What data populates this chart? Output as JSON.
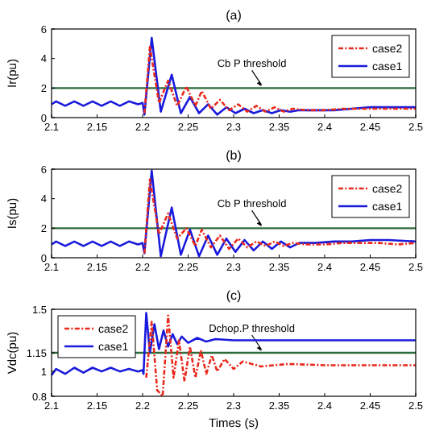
{
  "chart_data": [
    {
      "type": "line",
      "title": "(a)",
      "ylabel": "Ir(pu)",
      "xlim": [
        2.1,
        2.5
      ],
      "xticks": [
        2.1,
        2.15,
        2.2,
        2.25,
        2.3,
        2.35,
        2.4,
        2.45,
        2.5
      ],
      "ylim": [
        0,
        6
      ],
      "yticks": [
        0,
        2,
        4,
        6
      ],
      "legend": "top right",
      "marker": "none",
      "ref_lines": [
        {
          "axis": "y",
          "value": 2,
          "label": "Cb P threshold",
          "color": "#2e6b3a"
        }
      ],
      "series": [
        {
          "name": "case2",
          "color": "#e8291c",
          "line_style": "dashed",
          "x": [
            2.202,
            2.208,
            2.218,
            2.228,
            2.238,
            2.248,
            2.258,
            2.265,
            2.275,
            2.285,
            2.295,
            2.305,
            2.315,
            2.325,
            2.335,
            2.345,
            2.355,
            2.365,
            2.38,
            2.4,
            2.42,
            2.44,
            2.46,
            2.48,
            2.5
          ],
          "values": [
            0.3,
            4.8,
            1.0,
            2.5,
            0.8,
            2.1,
            0.8,
            1.8,
            0.6,
            1.2,
            0.5,
            0.9,
            0.4,
            0.8,
            0.4,
            0.7,
            0.4,
            0.6,
            0.5,
            0.5,
            0.6,
            0.6,
            0.6,
            0.6,
            0.6
          ]
        },
        {
          "name": "case1",
          "color": "#1a1adc",
          "line_style": "solid",
          "x": [
            2.1,
            2.105,
            2.115,
            2.125,
            2.135,
            2.145,
            2.155,
            2.165,
            2.175,
            2.185,
            2.195,
            2.2,
            2.202,
            2.21,
            2.22,
            2.232,
            2.242,
            2.252,
            2.262,
            2.272,
            2.282,
            2.292,
            2.302,
            2.312,
            2.322,
            2.332,
            2.342,
            2.352,
            2.362,
            2.372,
            2.39,
            2.41,
            2.43,
            2.45,
            2.47,
            2.5
          ],
          "values": [
            0.9,
            1.1,
            0.8,
            1.1,
            0.8,
            1.1,
            0.8,
            1.1,
            0.8,
            1.1,
            0.9,
            1.0,
            0.2,
            5.4,
            0.4,
            2.9,
            0.3,
            1.4,
            0.3,
            0.9,
            0.2,
            0.7,
            0.3,
            0.6,
            0.3,
            0.5,
            0.3,
            0.5,
            0.4,
            0.5,
            0.5,
            0.5,
            0.6,
            0.7,
            0.7,
            0.7
          ]
        }
      ]
    },
    {
      "type": "line",
      "title": "(b)",
      "ylabel": "Is(pu)",
      "xlim": [
        2.1,
        2.5
      ],
      "xticks": [
        2.1,
        2.15,
        2.2,
        2.25,
        2.3,
        2.35,
        2.4,
        2.45,
        2.5
      ],
      "ylim": [
        0,
        6
      ],
      "yticks": [
        0,
        2,
        4,
        6
      ],
      "legend": "top right",
      "marker": "none",
      "ref_lines": [
        {
          "axis": "y",
          "value": 2,
          "label": "Cb P threshold",
          "color": "#2e6b3a"
        }
      ],
      "series": [
        {
          "name": "case2",
          "color": "#e8291c",
          "line_style": "dashed",
          "x": [
            2.202,
            2.208,
            2.218,
            2.228,
            2.238,
            2.248,
            2.258,
            2.265,
            2.275,
            2.285,
            2.295,
            2.305,
            2.315,
            2.325,
            2.335,
            2.345,
            2.355,
            2.365,
            2.38,
            2.4,
            2.42,
            2.44,
            2.46,
            2.48,
            2.5
          ],
          "values": [
            0.3,
            5.3,
            1.6,
            3.0,
            1.3,
            2.0,
            0.8,
            1.9,
            0.7,
            1.5,
            0.6,
            1.3,
            0.7,
            1.1,
            0.8,
            1.1,
            0.8,
            1.0,
            0.9,
            0.9,
            1.0,
            1.0,
            1.0,
            0.9,
            1.0
          ]
        },
        {
          "name": "case1",
          "color": "#1a1adc",
          "line_style": "solid",
          "x": [
            2.1,
            2.105,
            2.115,
            2.125,
            2.135,
            2.145,
            2.155,
            2.165,
            2.175,
            2.185,
            2.195,
            2.2,
            2.202,
            2.21,
            2.22,
            2.232,
            2.242,
            2.252,
            2.262,
            2.272,
            2.282,
            2.292,
            2.302,
            2.312,
            2.322,
            2.332,
            2.342,
            2.352,
            2.362,
            2.372,
            2.39,
            2.41,
            2.43,
            2.45,
            2.47,
            2.5
          ],
          "values": [
            0.9,
            1.1,
            0.8,
            1.1,
            0.8,
            1.1,
            0.8,
            1.1,
            0.8,
            1.1,
            0.9,
            1.0,
            0.3,
            5.9,
            0.1,
            3.4,
            0.2,
            1.9,
            0.1,
            1.5,
            0.2,
            1.3,
            0.4,
            1.2,
            0.5,
            1.1,
            0.6,
            1.1,
            0.7,
            1.0,
            1.0,
            1.1,
            1.1,
            1.2,
            1.2,
            1.1
          ]
        }
      ]
    },
    {
      "type": "line",
      "title": "(c)",
      "ylabel": "Vdc(pu)",
      "xlabel": "Times (s)",
      "xlim": [
        2.1,
        2.5
      ],
      "xticks": [
        2.1,
        2.15,
        2.2,
        2.25,
        2.3,
        2.35,
        2.4,
        2.45,
        2.5
      ],
      "ylim": [
        0.8,
        1.5
      ],
      "yticks": [
        0.8,
        1,
        1.15,
        1.5
      ],
      "legend": "top left",
      "marker": "none",
      "ref_lines": [
        {
          "axis": "y",
          "value": 1.15,
          "label": "Dchop.P threshold",
          "color": "#2e6b3a"
        }
      ],
      "series": [
        {
          "name": "case2",
          "color": "#e8291c",
          "line_style": "dashed",
          "x": [
            2.204,
            2.21,
            2.216,
            2.222,
            2.228,
            2.234,
            2.24,
            2.246,
            2.252,
            2.258,
            2.264,
            2.27,
            2.276,
            2.282,
            2.29,
            2.3,
            2.31,
            2.33,
            2.36,
            2.4,
            2.45,
            2.5
          ],
          "values": [
            0.95,
            1.4,
            0.85,
            0.8,
            1.45,
            0.95,
            1.25,
            0.92,
            1.2,
            0.95,
            1.17,
            0.98,
            1.13,
            1.0,
            1.1,
            1.02,
            1.08,
            1.04,
            1.06,
            1.05,
            1.05,
            1.05
          ]
        },
        {
          "name": "case1",
          "color": "#1a1adc",
          "line_style": "solid",
          "x": [
            2.1,
            2.105,
            2.115,
            2.125,
            2.135,
            2.145,
            2.155,
            2.165,
            2.175,
            2.185,
            2.195,
            2.2,
            2.201,
            2.204,
            2.208,
            2.213,
            2.218,
            2.223,
            2.228,
            2.233,
            2.238,
            2.243,
            2.25,
            2.26,
            2.27,
            2.28,
            2.3,
            2.35,
            2.4,
            2.45,
            2.5
          ],
          "values": [
            0.97,
            1.02,
            0.98,
            1.03,
            0.99,
            1.03,
            1.0,
            1.03,
            1.0,
            1.02,
            1.0,
            1.01,
            0.98,
            1.47,
            1.15,
            1.38,
            1.18,
            1.33,
            1.2,
            1.3,
            1.22,
            1.28,
            1.23,
            1.27,
            1.24,
            1.26,
            1.25,
            1.25,
            1.25,
            1.25,
            1.25
          ]
        }
      ]
    }
  ]
}
